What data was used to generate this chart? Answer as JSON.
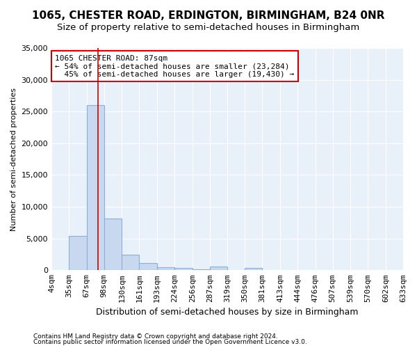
{
  "title": "1065, CHESTER ROAD, ERDINGTON, BIRMINGHAM, B24 0NR",
  "subtitle": "Size of property relative to semi-detached houses in Birmingham",
  "xlabel": "Distribution of semi-detached houses by size in Birmingham",
  "ylabel": "Number of semi-detached properties",
  "footnote1": "Contains HM Land Registry data © Crown copyright and database right 2024.",
  "footnote2": "Contains public sector information licensed under the Open Government Licence v3.0.",
  "bin_edges": [
    4,
    35,
    67,
    98,
    130,
    161,
    193,
    224,
    256,
    287,
    319,
    350,
    381,
    413,
    444,
    476,
    507,
    539,
    570,
    602,
    633
  ],
  "bar_heights": [
    0,
    5400,
    26000,
    8100,
    2400,
    1100,
    500,
    400,
    150,
    550,
    0,
    400,
    0,
    0,
    0,
    0,
    0,
    0,
    0,
    0
  ],
  "bar_color": "#c8d9ef",
  "bar_edge_color": "#8ab0d5",
  "property_size": 87,
  "property_label": "1065 CHESTER ROAD: 87sqm",
  "pct_smaller": 54,
  "pct_smaller_count": "23,284",
  "pct_larger": 45,
  "pct_larger_count": "19,430",
  "vline_color": "#cc0000",
  "annotation_box_color": "#cc0000",
  "ylim": [
    0,
    35000
  ],
  "yticks": [
    0,
    5000,
    10000,
    15000,
    20000,
    25000,
    30000,
    35000
  ],
  "background_color": "#dce8f5",
  "plot_bg_color": "#e8f0fa",
  "title_fontsize": 11,
  "subtitle_fontsize": 9.5,
  "figsize": [
    6.0,
    5.0
  ],
  "dpi": 100
}
